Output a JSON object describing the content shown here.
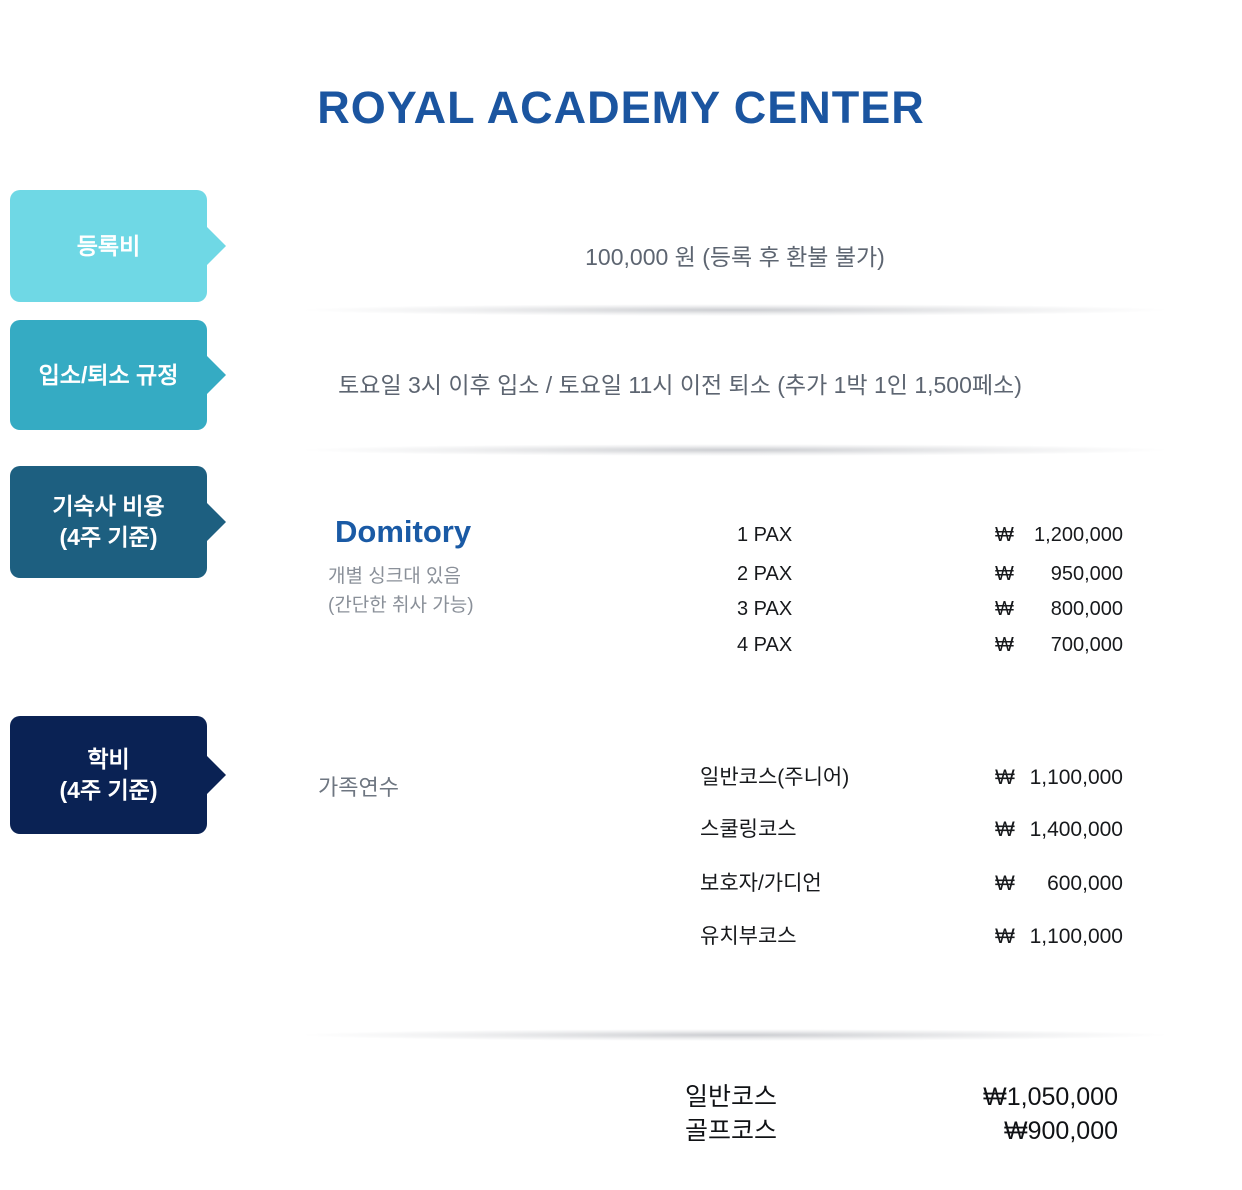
{
  "title": "ROYAL ACADEMY CENTER",
  "colors": {
    "title_blue": "#1b55a0",
    "heading_blue": "#1a5aa5",
    "tab_registration": "#6fd8e5",
    "tab_check_in_out": "#35abc3",
    "tab_dormitory": "#1d5f80",
    "tab_tuition": "#0a2254"
  },
  "tabs": [
    {
      "label": "등록비",
      "color": "#6fd8e5"
    },
    {
      "label": "입소/퇴소 규정",
      "color": "#35abc3"
    },
    {
      "line1": "기숙사 비용",
      "line2": "(4주 기준)",
      "color": "#1d5f80"
    },
    {
      "line1": "학비",
      "line2": "(4주 기준)",
      "color": "#0a2254"
    }
  ],
  "registration": {
    "text": "100,000 원 (등록 후 환불 불가)"
  },
  "check_in_out": {
    "text": "토요일 3시 이후 입소 / 토요일 11시 이전 퇴소 (추가 1박 1인 1,500페소)"
  },
  "dormitory": {
    "heading": "Domitory",
    "note_line1": "개별 싱크대 있음",
    "note_line2": "(간단한 취사 가능)",
    "rows": [
      {
        "label": "1 PAX",
        "currency": "₩",
        "price": "1,200,000"
      },
      {
        "label": "2 PAX",
        "currency": "₩",
        "price": "950,000"
      },
      {
        "label": "3 PAX",
        "currency": "₩",
        "price": "800,000"
      },
      {
        "label": "4 PAX",
        "currency": "₩",
        "price": "700,000"
      }
    ]
  },
  "tuition": {
    "group_label": "가족연수",
    "rows": [
      {
        "label": "일반코스(주니어)",
        "currency": "₩",
        "price": "1,100,000"
      },
      {
        "label": "스쿨링코스",
        "currency": "₩",
        "price": "1,400,000"
      },
      {
        "label": "보호자/가디언",
        "currency": "₩",
        "price": "600,000"
      },
      {
        "label": "유치부코스",
        "currency": "₩",
        "price": "1,100,000"
      }
    ]
  },
  "other_courses": {
    "rows": [
      {
        "label": "일반코스",
        "price": "₩1,050,000"
      },
      {
        "label": "골프코스",
        "price": "₩900,000"
      }
    ]
  }
}
